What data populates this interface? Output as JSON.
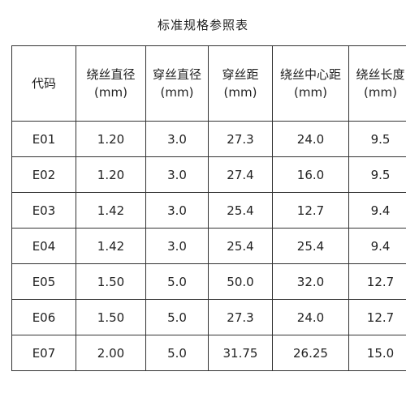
{
  "title": "标准规格参照表",
  "table": {
    "headers": [
      {
        "label": "代码",
        "unit": ""
      },
      {
        "label": "绕丝直径",
        "unit": "(mm)"
      },
      {
        "label": "穿丝直径",
        "unit": "(mm)"
      },
      {
        "label": "穿丝距",
        "unit": "(mm)"
      },
      {
        "label": "绕丝中心距",
        "unit": "(mm)"
      },
      {
        "label": "绕丝长度",
        "unit": "(mm)"
      }
    ],
    "rows": [
      [
        "E01",
        "1.20",
        "3.0",
        "27.3",
        "24.0",
        "9.5"
      ],
      [
        "E02",
        "1.20",
        "3.0",
        "27.4",
        "16.0",
        "9.5"
      ],
      [
        "E03",
        "1.42",
        "3.0",
        "25.4",
        "12.7",
        "9.4"
      ],
      [
        "E04",
        "1.42",
        "3.0",
        "25.4",
        "25.4",
        "9.4"
      ],
      [
        "E05",
        "1.50",
        "5.0",
        "50.0",
        "32.0",
        "12.7"
      ],
      [
        "E06",
        "1.50",
        "5.0",
        "27.3",
        "24.0",
        "12.7"
      ],
      [
        "E07",
        "2.00",
        "5.0",
        "31.75",
        "26.25",
        "15.0"
      ]
    ]
  }
}
